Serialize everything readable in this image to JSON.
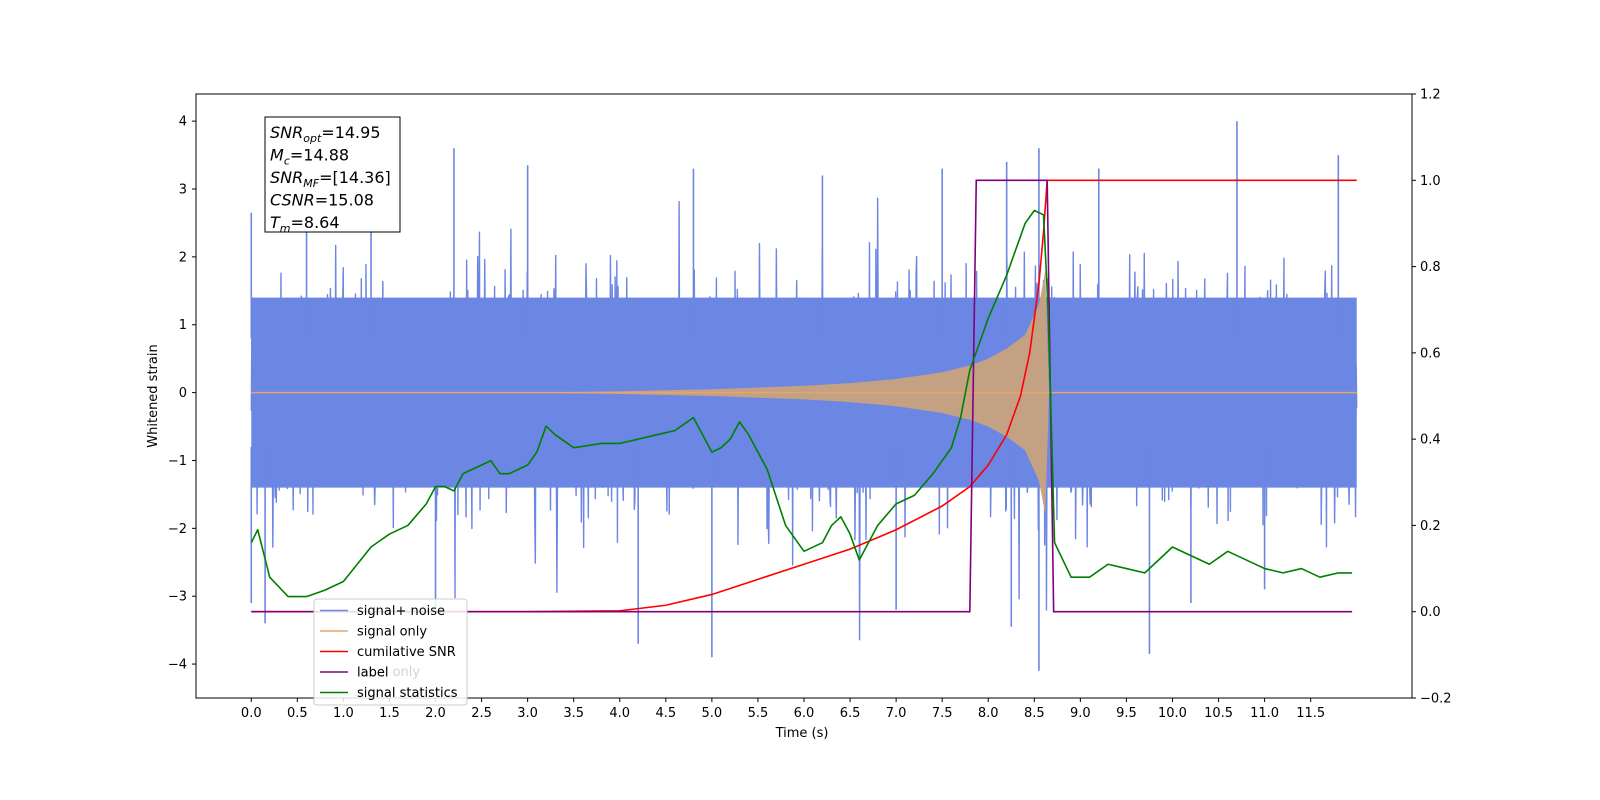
{
  "chart_data": {
    "type": "line",
    "xlabel": "Time (s)",
    "ylabel": "Whitened strain",
    "xlim": [
      -0.6,
      12.6
    ],
    "ylim": [
      -4.5,
      4.4
    ],
    "y2lim": [
      -0.2,
      1.2
    ],
    "x_ticks": [
      0.0,
      0.5,
      1.0,
      1.5,
      2.0,
      2.5,
      3.0,
      3.5,
      4.0,
      4.5,
      5.0,
      5.5,
      6.0,
      6.5,
      7.0,
      7.5,
      8.0,
      8.5,
      9.0,
      9.5,
      10.0,
      10.5,
      11.0,
      11.5
    ],
    "x_tick_labels": [
      "0.0",
      "0.5",
      "1.0",
      "1.5",
      "2.0",
      "2.5",
      "3.0",
      "3.5",
      "4.0",
      "4.5",
      "5.0",
      "5.5",
      "6.0",
      "6.5",
      "7.0",
      "7.5",
      "8.0",
      "8.5",
      "9.0",
      "9.5",
      "10.0",
      "10.5",
      "11.0",
      "11.5"
    ],
    "y_ticks": [
      -4,
      -3,
      -2,
      -1,
      0,
      1,
      2,
      3,
      4
    ],
    "y_tick_labels": [
      "−4",
      "−3",
      "−2",
      "−1",
      "0",
      "1",
      "2",
      "3",
      "4"
    ],
    "y2_ticks": [
      -0.2,
      0.0,
      0.2,
      0.4,
      0.6,
      0.8,
      1.0,
      1.2
    ],
    "y2_tick_labels": [
      "−0.2",
      "0.0",
      "0.2",
      "0.4",
      "0.6",
      "0.8",
      "1.0",
      "1.2"
    ],
    "grid": false,
    "legend_position": "lower-left",
    "series": [
      {
        "name": "signal+ noise",
        "color": "#6b86e3",
        "axis": "left",
        "x_range": [
          0.0,
          12.0
        ],
        "band_amplitude": 1.4,
        "peak_x": [
          0.0,
          0.6,
          1.3,
          2.2,
          3.0,
          4.8,
          6.2,
          7.5,
          8.2,
          8.55,
          9.2,
          10.7,
          11.8
        ],
        "peak_y": [
          2.65,
          3.3,
          3.5,
          3.6,
          3.35,
          3.3,
          3.2,
          3.3,
          3.4,
          3.6,
          3.3,
          4.0,
          3.5
        ],
        "trough_x": [
          0.0,
          0.15,
          2.0,
          4.2,
          5.0,
          7.0,
          8.25,
          8.55,
          9.75,
          10.2,
          11.0
        ],
        "trough_y": [
          -3.1,
          -3.4,
          -3.2,
          -3.7,
          -3.9,
          -3.2,
          -3.45,
          -4.1,
          -3.85,
          -3.1,
          -2.9
        ]
      },
      {
        "name": "signal only",
        "color": "#e4a66a",
        "axis": "left",
        "x": [
          0.0,
          3.0,
          4.0,
          5.0,
          6.0,
          6.5,
          7.0,
          7.5,
          7.8,
          8.0,
          8.2,
          8.4,
          8.55,
          8.62,
          8.66,
          12.0
        ],
        "amplitude": [
          0.0,
          0.0,
          0.02,
          0.05,
          0.1,
          0.14,
          0.2,
          0.3,
          0.4,
          0.5,
          0.65,
          0.85,
          1.3,
          1.8,
          0.0,
          0.0
        ]
      },
      {
        "name": "cumilative SNR",
        "color": "#ff0000",
        "axis": "right",
        "x": [
          0.0,
          3.0,
          4.0,
          4.5,
          5.0,
          5.5,
          6.0,
          6.5,
          7.0,
          7.5,
          7.8,
          8.0,
          8.2,
          8.35,
          8.45,
          8.55,
          8.6,
          8.64,
          8.66,
          12.0
        ],
        "values": [
          0.0,
          0.0,
          0.002,
          0.015,
          0.04,
          0.075,
          0.11,
          0.145,
          0.19,
          0.245,
          0.29,
          0.34,
          0.41,
          0.5,
          0.6,
          0.76,
          0.88,
          1.0,
          1.0,
          1.0
        ]
      },
      {
        "name": "label",
        "color": "#800080",
        "axis": "right",
        "x": [
          0.0,
          7.8,
          7.87,
          8.64,
          8.71,
          11.95
        ],
        "values": [
          0.0,
          0.0,
          1.0,
          1.0,
          0.0,
          0.0
        ]
      },
      {
        "name": "signal statistics",
        "color": "#008000",
        "axis": "right",
        "x": [
          0.0,
          0.07,
          0.2,
          0.4,
          0.6,
          0.8,
          1.0,
          1.3,
          1.5,
          1.7,
          1.9,
          2.0,
          2.1,
          2.2,
          2.3,
          2.5,
          2.6,
          2.7,
          2.8,
          3.0,
          3.1,
          3.2,
          3.3,
          3.5,
          3.8,
          4.0,
          4.2,
          4.4,
          4.6,
          4.8,
          5.0,
          5.1,
          5.2,
          5.3,
          5.4,
          5.6,
          5.8,
          6.0,
          6.2,
          6.3,
          6.4,
          6.5,
          6.6,
          6.8,
          7.0,
          7.2,
          7.4,
          7.6,
          7.7,
          7.8,
          7.9,
          8.0,
          8.2,
          8.4,
          8.5,
          8.6,
          8.65,
          8.72,
          8.9,
          9.1,
          9.3,
          9.5,
          9.7,
          9.9,
          10.0,
          10.2,
          10.4,
          10.6,
          10.8,
          11.0,
          11.2,
          11.4,
          11.6,
          11.8,
          11.95
        ],
        "values": [
          0.16,
          0.19,
          0.08,
          0.035,
          0.035,
          0.05,
          0.07,
          0.15,
          0.18,
          0.2,
          0.25,
          0.29,
          0.29,
          0.28,
          0.32,
          0.34,
          0.35,
          0.32,
          0.32,
          0.34,
          0.37,
          0.43,
          0.41,
          0.38,
          0.39,
          0.39,
          0.4,
          0.41,
          0.42,
          0.45,
          0.37,
          0.38,
          0.4,
          0.44,
          0.41,
          0.33,
          0.2,
          0.14,
          0.16,
          0.2,
          0.22,
          0.18,
          0.12,
          0.2,
          0.25,
          0.27,
          0.32,
          0.38,
          0.45,
          0.56,
          0.62,
          0.68,
          0.78,
          0.9,
          0.93,
          0.92,
          0.7,
          0.16,
          0.08,
          0.08,
          0.11,
          0.1,
          0.09,
          0.13,
          0.15,
          0.13,
          0.11,
          0.14,
          0.12,
          0.1,
          0.09,
          0.1,
          0.08,
          0.09,
          0.09
        ]
      }
    ],
    "annotation_box": [
      {
        "symbol": "SNR",
        "sub": "opt",
        "value": "=14.95"
      },
      {
        "symbol": "M",
        "sub": "c",
        "value": "=14.88"
      },
      {
        "symbol": "SNR",
        "sub": "MF",
        "value": "=[14.36]"
      },
      {
        "symbol": "CSNR",
        "sub": "",
        "value": "=15.08"
      },
      {
        "symbol": "T",
        "sub": "m",
        "value": "=8.64"
      }
    ],
    "legend_entries": [
      "signal+ noise",
      "signal only",
      "cumilative SNR",
      "label",
      "signal statistics"
    ],
    "legend_overlay_fragments": [
      "label only",
      "signal statistics"
    ]
  }
}
